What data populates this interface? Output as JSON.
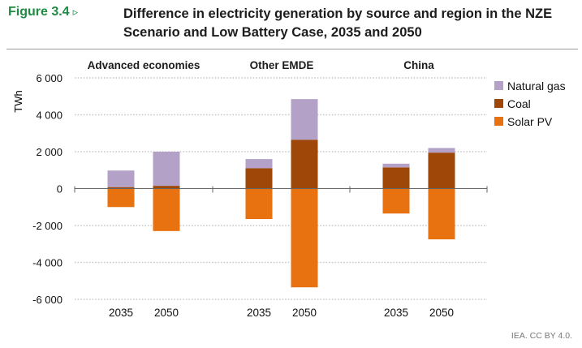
{
  "figure": {
    "label": "Figure 3.4",
    "arrow": "▹"
  },
  "title": "Difference in electricity generation by source and region in the NZE Scenario and Low Battery Case, 2035 and 2050",
  "credit": "IEA. CC BY 4.0.",
  "colors": {
    "natural_gas": "#b3a1c7",
    "coal": "#9e4708",
    "solar_pv": "#e8720f",
    "grid": "#c8c8c8",
    "axis": "#666666"
  },
  "chart_data": {
    "type": "bar",
    "stacked": true,
    "ylabel": "TWh",
    "ylim": [
      -6000,
      6000
    ],
    "yticks": [
      6000,
      4000,
      2000,
      0,
      -2000,
      -4000,
      -6000
    ],
    "ytick_labels": [
      "6 000",
      "4 000",
      "2 000",
      "0",
      "-2 000",
      "-4 000",
      "-6 000"
    ],
    "groups": [
      "Advanced economies",
      "Other EMDE",
      "China"
    ],
    "categories": [
      "2035",
      "2050"
    ],
    "series": [
      {
        "name": "Natural gas",
        "color": "#b3a1c7",
        "values": [
          [
            900,
            1850
          ],
          [
            500,
            2200
          ],
          [
            200,
            250
          ]
        ]
      },
      {
        "name": "Coal",
        "color": "#9e4708",
        "values": [
          [
            80,
            150
          ],
          [
            1100,
            2650
          ],
          [
            1150,
            1950
          ]
        ]
      },
      {
        "name": "Solar PV",
        "color": "#e8720f",
        "values": [
          [
            -1000,
            -2300
          ],
          [
            -1650,
            -5350
          ],
          [
            -1350,
            -2750
          ]
        ]
      }
    ],
    "legend": {
      "position": "top-right",
      "order": [
        "Natural gas",
        "Coal",
        "Solar PV"
      ]
    },
    "grid": "dotted-horizontal"
  }
}
